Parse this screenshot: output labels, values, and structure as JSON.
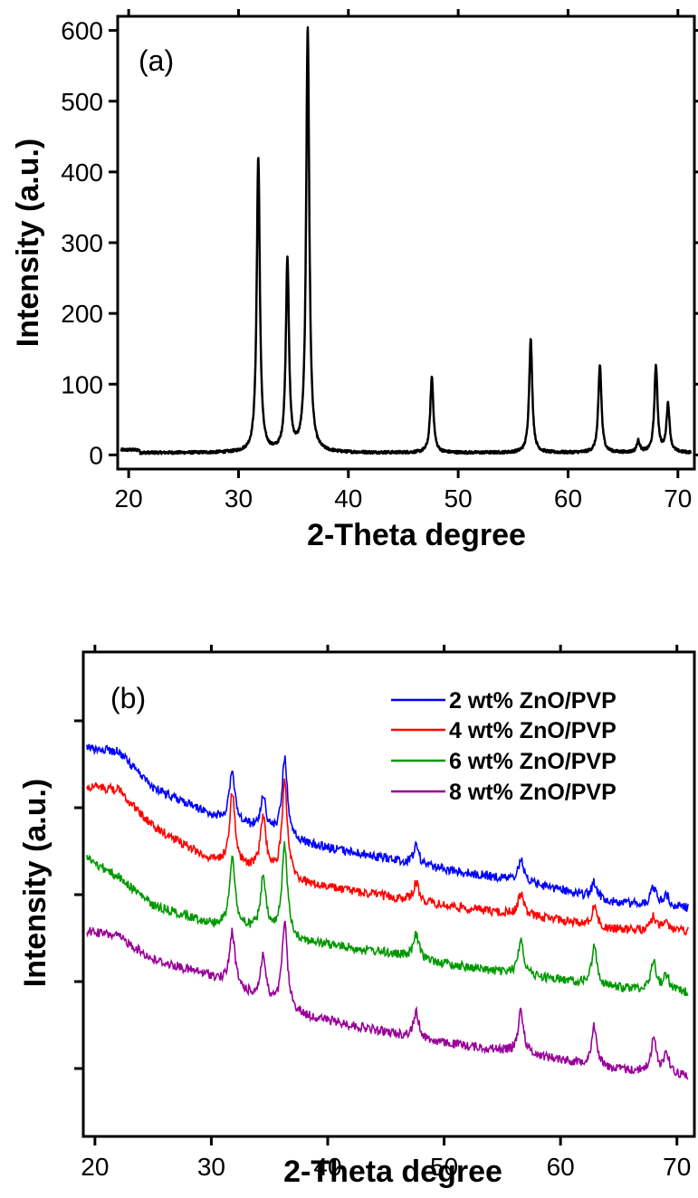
{
  "chart_data": [
    {
      "type": "line",
      "panel_label": "(a)",
      "xlabel": "2-Theta degree",
      "ylabel": "Intensity (a.u.)",
      "xlim": [
        19,
        71.5
      ],
      "ylim": [
        -20,
        620
      ],
      "xticks": [
        "20",
        "30",
        "40",
        "50",
        "60",
        "70"
      ],
      "yticks": [
        "0",
        "100",
        "200",
        "300",
        "400",
        "500",
        "600"
      ],
      "baseline": 3,
      "peaks": [
        {
          "x": 31.8,
          "y": 421
        },
        {
          "x": 34.45,
          "y": 275
        },
        {
          "x": 36.3,
          "y": 603
        },
        {
          "x": 47.6,
          "y": 110
        },
        {
          "x": 56.6,
          "y": 163
        },
        {
          "x": 62.9,
          "y": 127
        },
        {
          "x": 66.4,
          "y": 19
        },
        {
          "x": 68.0,
          "y": 125
        },
        {
          "x": 69.1,
          "y": 71
        }
      ],
      "series": [
        {
          "color": "#000000"
        }
      ]
    },
    {
      "type": "line",
      "panel_label": "(b)",
      "xlabel": "2-Theta degree",
      "ylabel": "Intensity (a.u.)",
      "xlim": [
        19,
        71.5
      ],
      "xticks": [
        "20",
        "30",
        "40",
        "50",
        "60",
        "70"
      ],
      "legend_position": "top-right",
      "series": [
        {
          "name": "2 wt% ZnO/PVP",
          "color": "#0000ff"
        },
        {
          "name": "4 wt% ZnO/PVP",
          "color": "#ff0000"
        },
        {
          "name": "6 wt% ZnO/PVP",
          "color": "#009900"
        },
        {
          "name": "8 wt% ZnO/PVP",
          "color": "#990099"
        }
      ]
    }
  ]
}
